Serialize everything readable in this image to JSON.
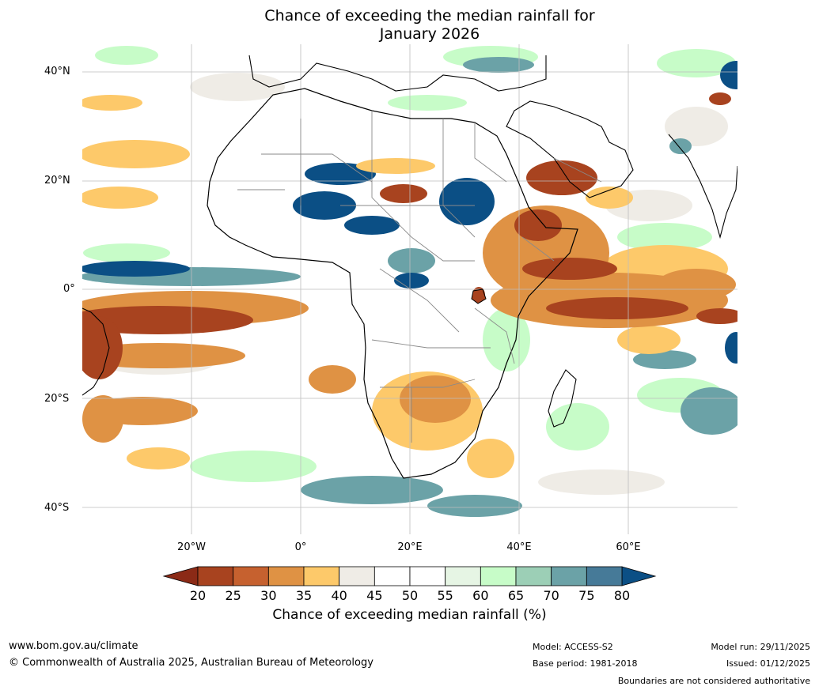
{
  "title": {
    "line1": "Chance of exceeding the median rainfall for",
    "line2": "January 2026"
  },
  "map": {
    "lat_labels": [
      "40°N",
      "20°N",
      "0°",
      "20°S",
      "40°S"
    ],
    "lon_labels": [
      "20°W",
      "0°",
      "20°E",
      "40°E",
      "60°E"
    ],
    "colors": {
      "ocean_bg": "#ffffff",
      "grid": "#bdbdbd",
      "coastline": "#000000",
      "borders": "#8a8a8a"
    }
  },
  "colorbar": {
    "title": "Chance of exceeding median rainfall (%)",
    "ticks": [
      "20",
      "25",
      "30",
      "35",
      "40",
      "45",
      "50",
      "55",
      "60",
      "65",
      "70",
      "75",
      "80"
    ],
    "under_color": "#8b2a16",
    "over_color": "#0b4f85",
    "colors": [
      "#a8431f",
      "#c6612f",
      "#df9244",
      "#fdc96a",
      "#efece6",
      "#ffffff",
      "#ffffff",
      "#e6f5e4",
      "#c7fcc8",
      "#9ccfb6",
      "#6ba2a7",
      "#467a98"
    ]
  },
  "footer": {
    "website": "www.bom.gov.au/climate",
    "copyright": "© Commonwealth of Australia 2025, Australian Bureau of Meteorology",
    "model": "Model: ACCESS-S2",
    "base_period": "Base period: 1981-2018",
    "model_run": "Model run: 29/11/2025",
    "issued": "Issued: 01/12/2025",
    "disclaimer": "Boundaries are not considered authoritative"
  }
}
